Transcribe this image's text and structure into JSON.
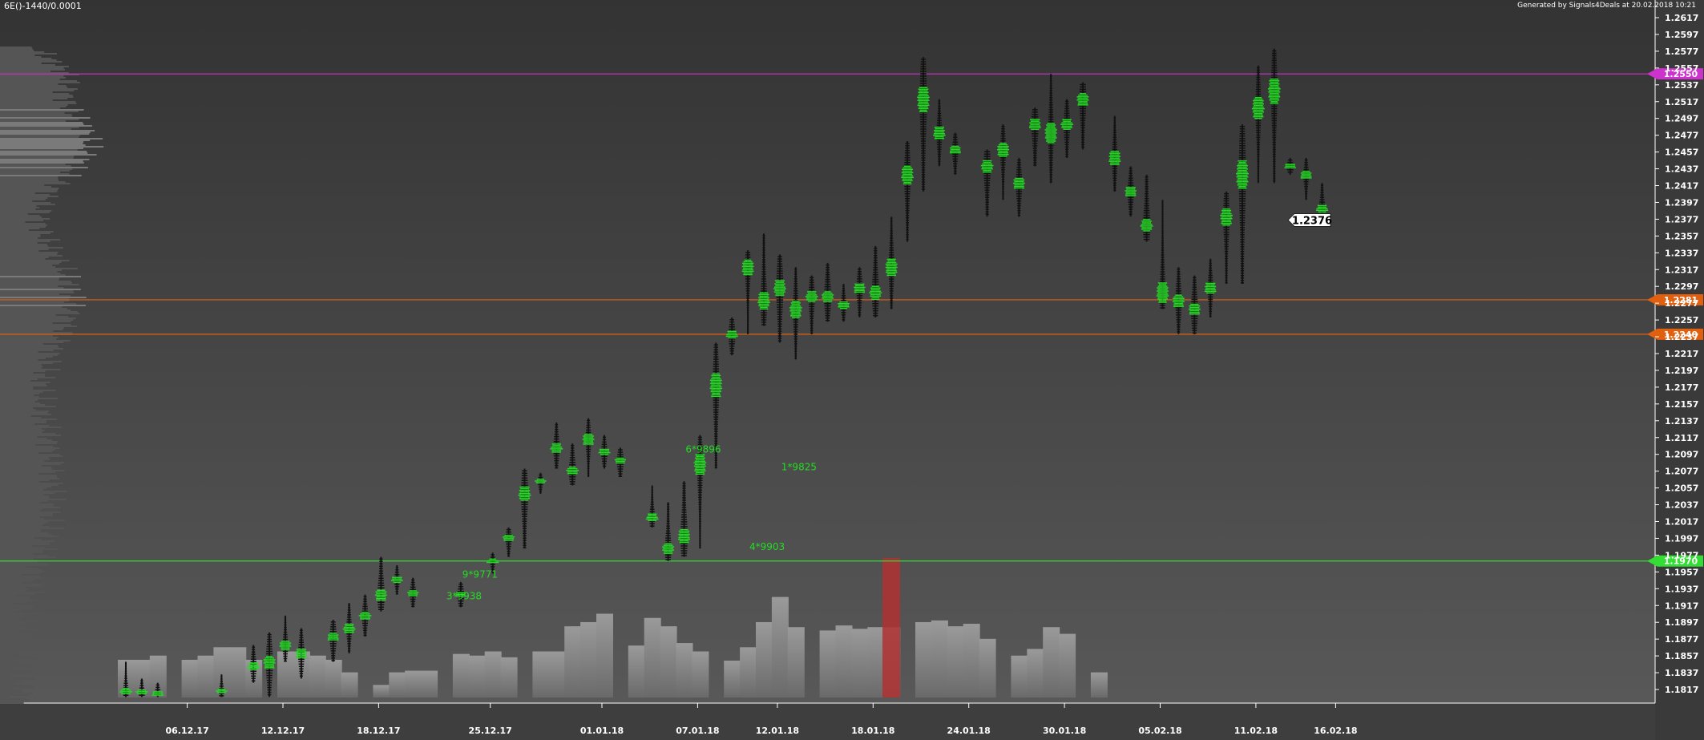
{
  "header": {
    "symbol": "6E()-1440/0.0001",
    "generated_by": "Generated by Signals4Deals at 20.02.2018 10:21"
  },
  "colors": {
    "background_top": "#333333",
    "background_bottom": "#5a5a5a",
    "profile_bar": "#555555",
    "profile_bar_high": "#7a7a7a",
    "candle_profile_green": "#22dd22",
    "candle_profile_dark": "#111111",
    "volume_bar": "#8a8a8a",
    "volume_bar_highlight": "#b03030",
    "axis_text": "#ffffff",
    "magenta_level": "#cc33cc",
    "orange_level": "#e06010",
    "green_level": "#33dd33",
    "current_price_bg": "#ffffff"
  },
  "chart_data": {
    "type": "volume-profile-candlestick",
    "price_axis_ticks": [
      "1.2617",
      "1.2597",
      "1.2577",
      "1.2557",
      "1.2537",
      "1.2517",
      "1.2497",
      "1.2477",
      "1.2457",
      "1.2437",
      "1.2417",
      "1.2397",
      "1.2377",
      "1.2357",
      "1.2337",
      "1.2317",
      "1.2297",
      "1.2277",
      "1.2257",
      "1.2237",
      "1.2217",
      "1.2197",
      "1.2177",
      "1.2157",
      "1.2137",
      "1.2117",
      "1.2097",
      "1.2077",
      "1.2057",
      "1.2037",
      "1.2017",
      "1.1997",
      "1.1977",
      "1.1957",
      "1.1937",
      "1.1917",
      "1.1897",
      "1.1877",
      "1.1857",
      "1.1837",
      "1.1817"
    ],
    "ylim": [
      1.1807,
      1.2627
    ],
    "date_axis_labels": [
      {
        "label": "06.12.17",
        "day": 4
      },
      {
        "label": "12.12.17",
        "day": 10
      },
      {
        "label": "18.12.17",
        "day": 16
      },
      {
        "label": "25.12.17",
        "day": 23
      },
      {
        "label": "01.01.18",
        "day": 30
      },
      {
        "label": "07.01.18",
        "day": 36
      },
      {
        "label": "12.01.18",
        "day": 41
      },
      {
        "label": "18.01.18",
        "day": 47
      },
      {
        "label": "24.01.18",
        "day": 53
      },
      {
        "label": "30.01.18",
        "day": 59
      },
      {
        "label": "05.02.18",
        "day": 65
      },
      {
        "label": "11.02.18",
        "day": 71
      },
      {
        "label": "16.02.18",
        "day": 76
      }
    ],
    "levels": [
      {
        "price": "1.2550",
        "value": 1.255,
        "color": "#cc33cc"
      },
      {
        "price": "1.2281",
        "value": 1.2281,
        "color": "#e06010"
      },
      {
        "price": "1.2240",
        "value": 1.224,
        "color": "#e06010"
      },
      {
        "price": "1.1970",
        "value": 1.197,
        "color": "#33dd33"
      }
    ],
    "current_price": {
      "label": "1.2376",
      "value": 1.2376,
      "day": 82
    },
    "annotations": [
      {
        "text": "6*9896",
        "day": 36,
        "price": 1.2103
      },
      {
        "text": "1*9825",
        "day": 42,
        "price": 1.2082
      },
      {
        "text": "4*9903",
        "day": 40,
        "price": 1.1987
      },
      {
        "text": "9*9771",
        "day": 22,
        "price": 1.1954
      },
      {
        "text": "3*9938",
        "day": 21,
        "price": 1.1928
      }
    ],
    "candles": [
      {
        "day": 0,
        "high": 1.185,
        "low": 1.1808,
        "poc": 1.1815
      },
      {
        "day": 1,
        "high": 1.183,
        "low": 1.1808,
        "poc": 1.1814
      },
      {
        "day": 2,
        "high": 1.1825,
        "low": 1.1808,
        "poc": 1.1812
      },
      {
        "day": 6,
        "high": 1.1835,
        "low": 1.1808,
        "poc": 1.1815
      },
      {
        "day": 8,
        "high": 1.187,
        "low": 1.1825,
        "poc": 1.1845
      },
      {
        "day": 9,
        "high": 1.1885,
        "low": 1.1808,
        "poc": 1.185
      },
      {
        "day": 10,
        "high": 1.1905,
        "low": 1.185,
        "poc": 1.187
      },
      {
        "day": 11,
        "high": 1.189,
        "low": 1.183,
        "poc": 1.186
      },
      {
        "day": 13,
        "high": 1.19,
        "low": 1.185,
        "poc": 1.188
      },
      {
        "day": 14,
        "high": 1.192,
        "low": 1.186,
        "poc": 1.189
      },
      {
        "day": 15,
        "high": 1.193,
        "low": 1.188,
        "poc": 1.1905
      },
      {
        "day": 16,
        "high": 1.1975,
        "low": 1.191,
        "poc": 1.193
      },
      {
        "day": 17,
        "high": 1.1965,
        "low": 1.193,
        "poc": 1.1948
      },
      {
        "day": 18,
        "high": 1.195,
        "low": 1.1915,
        "poc": 1.1932
      },
      {
        "day": 21,
        "high": 1.1945,
        "low": 1.1915,
        "poc": 1.193
      },
      {
        "day": 23,
        "high": 1.198,
        "low": 1.1955,
        "poc": 1.197
      },
      {
        "day": 24,
        "high": 1.201,
        "low": 1.1975,
        "poc": 1.1998
      },
      {
        "day": 25,
        "high": 1.208,
        "low": 1.1985,
        "poc": 1.205
      },
      {
        "day": 26,
        "high": 1.2075,
        "low": 1.205,
        "poc": 1.2065
      },
      {
        "day": 27,
        "high": 1.2135,
        "low": 1.208,
        "poc": 1.2105
      },
      {
        "day": 28,
        "high": 1.211,
        "low": 1.206,
        "poc": 1.2078
      },
      {
        "day": 29,
        "high": 1.214,
        "low": 1.207,
        "poc": 1.2115
      },
      {
        "day": 30,
        "high": 1.212,
        "low": 1.208,
        "poc": 1.21
      },
      {
        "day": 31,
        "high": 1.2105,
        "low": 1.207,
        "poc": 1.209
      },
      {
        "day": 33,
        "high": 1.206,
        "low": 1.201,
        "poc": 1.2022
      },
      {
        "day": 34,
        "high": 1.204,
        "low": 1.197,
        "poc": 1.1985
      },
      {
        "day": 35,
        "high": 1.2065,
        "low": 1.1975,
        "poc": 1.2
      },
      {
        "day": 36,
        "high": 1.212,
        "low": 1.1985,
        "poc": 1.2085
      },
      {
        "day": 37,
        "high": 1.223,
        "low": 1.208,
        "poc": 1.218
      },
      {
        "day": 38,
        "high": 1.226,
        "low": 1.2215,
        "poc": 1.224
      },
      {
        "day": 39,
        "high": 1.234,
        "low": 1.224,
        "poc": 1.232
      },
      {
        "day": 40,
        "high": 1.236,
        "low": 1.225,
        "poc": 1.228
      },
      {
        "day": 41,
        "high": 1.2335,
        "low": 1.223,
        "poc": 1.2295
      },
      {
        "day": 42,
        "high": 1.232,
        "low": 1.221,
        "poc": 1.227
      },
      {
        "day": 43,
        "high": 1.231,
        "low": 1.224,
        "poc": 1.2285
      },
      {
        "day": 44,
        "high": 1.2325,
        "low": 1.2255,
        "poc": 1.2285
      },
      {
        "day": 45,
        "high": 1.23,
        "low": 1.2255,
        "poc": 1.2275
      },
      {
        "day": 46,
        "high": 1.232,
        "low": 1.226,
        "poc": 1.2295
      },
      {
        "day": 47,
        "high": 1.2345,
        "low": 1.226,
        "poc": 1.229
      },
      {
        "day": 48,
        "high": 1.238,
        "low": 1.227,
        "poc": 1.232
      },
      {
        "day": 49,
        "high": 1.247,
        "low": 1.235,
        "poc": 1.243
      },
      {
        "day": 50,
        "high": 1.257,
        "low": 1.241,
        "poc": 1.252
      },
      {
        "day": 51,
        "high": 1.252,
        "low": 1.244,
        "poc": 1.248
      },
      {
        "day": 52,
        "high": 1.248,
        "low": 1.243,
        "poc": 1.246
      },
      {
        "day": 54,
        "high": 1.246,
        "low": 1.238,
        "poc": 1.244
      },
      {
        "day": 55,
        "high": 1.249,
        "low": 1.24,
        "poc": 1.246
      },
      {
        "day": 56,
        "high": 1.245,
        "low": 1.238,
        "poc": 1.242
      },
      {
        "day": 57,
        "high": 1.251,
        "low": 1.244,
        "poc": 1.249
      },
      {
        "day": 58,
        "high": 1.255,
        "low": 1.242,
        "poc": 1.248
      },
      {
        "day": 59,
        "high": 1.252,
        "low": 1.245,
        "poc": 1.249
      },
      {
        "day": 60,
        "high": 1.254,
        "low": 1.246,
        "poc": 1.252
      },
      {
        "day": 62,
        "high": 1.25,
        "low": 1.241,
        "poc": 1.245
      },
      {
        "day": 63,
        "high": 1.244,
        "low": 1.238,
        "poc": 1.241
      },
      {
        "day": 64,
        "high": 1.243,
        "low": 1.235,
        "poc": 1.237
      },
      {
        "day": 65,
        "high": 1.24,
        "low": 1.227,
        "poc": 1.229
      },
      {
        "day": 66,
        "high": 1.232,
        "low": 1.224,
        "poc": 1.228
      },
      {
        "day": 67,
        "high": 1.231,
        "low": 1.224,
        "poc": 1.227
      },
      {
        "day": 68,
        "high": 1.233,
        "low": 1.226,
        "poc": 1.2295
      },
      {
        "day": 69,
        "high": 1.241,
        "low": 1.23,
        "poc": 1.238
      },
      {
        "day": 70,
        "high": 1.249,
        "low": 1.23,
        "poc": 1.243
      },
      {
        "day": 71,
        "high": 1.256,
        "low": 1.242,
        "poc": 1.251
      },
      {
        "day": 72,
        "high": 1.258,
        "low": 1.242,
        "poc": 1.253
      },
      {
        "day": 73,
        "high": 1.245,
        "low": 1.243,
        "poc": 1.244
      },
      {
        "day": 74,
        "high": 1.245,
        "low": 1.24,
        "poc": 1.243
      },
      {
        "day": 75,
        "high": 1.242,
        "low": 1.2375,
        "poc": 1.239
      }
    ],
    "volume_bars": [
      {
        "day": 0,
        "v": 0.45
      },
      {
        "day": 1,
        "v": 0.45
      },
      {
        "day": 2,
        "v": 0.5
      },
      {
        "day": 4,
        "v": 0.45
      },
      {
        "day": 5,
        "v": 0.5
      },
      {
        "day": 6,
        "v": 0.6
      },
      {
        "day": 7,
        "v": 0.6
      },
      {
        "day": 8,
        "v": 0.45
      },
      {
        "day": 10,
        "v": 0.55
      },
      {
        "day": 11,
        "v": 0.55
      },
      {
        "day": 12,
        "v": 0.5
      },
      {
        "day": 13,
        "v": 0.45
      },
      {
        "day": 14,
        "v": 0.3
      },
      {
        "day": 16,
        "v": 0.15
      },
      {
        "day": 17,
        "v": 0.3
      },
      {
        "day": 18,
        "v": 0.32
      },
      {
        "day": 19,
        "v": 0.32
      },
      {
        "day": 21,
        "v": 0.52
      },
      {
        "day": 22,
        "v": 0.5
      },
      {
        "day": 23,
        "v": 0.55
      },
      {
        "day": 24,
        "v": 0.48
      },
      {
        "day": 26,
        "v": 0.55
      },
      {
        "day": 27,
        "v": 0.55
      },
      {
        "day": 28,
        "v": 0.85
      },
      {
        "day": 29,
        "v": 0.9
      },
      {
        "day": 30,
        "v": 1.0
      },
      {
        "day": 32,
        "v": 0.62
      },
      {
        "day": 33,
        "v": 0.95
      },
      {
        "day": 34,
        "v": 0.85
      },
      {
        "day": 35,
        "v": 0.65
      },
      {
        "day": 36,
        "v": 0.55
      },
      {
        "day": 38,
        "v": 0.44
      },
      {
        "day": 39,
        "v": 0.6
      },
      {
        "day": 40,
        "v": 0.9
      },
      {
        "day": 41,
        "v": 1.2
      },
      {
        "day": 42,
        "v": 0.84
      },
      {
        "day": 44,
        "v": 0.8
      },
      {
        "day": 45,
        "v": 0.86
      },
      {
        "day": 46,
        "v": 0.82
      },
      {
        "day": 47,
        "v": 0.84
      },
      {
        "day": 48,
        "v": 0.84
      },
      {
        "day": 50,
        "v": 0.9
      },
      {
        "day": 51,
        "v": 0.92
      },
      {
        "day": 52,
        "v": 0.85
      },
      {
        "day": 53,
        "v": 0.88
      },
      {
        "day": 54,
        "v": 0.7
      },
      {
        "day": 56,
        "v": 0.5
      },
      {
        "day": 57,
        "v": 0.58
      },
      {
        "day": 58,
        "v": 0.84
      },
      {
        "day": 59,
        "v": 0.76
      },
      {
        "day": 61,
        "v": 0.3
      }
    ]
  }
}
